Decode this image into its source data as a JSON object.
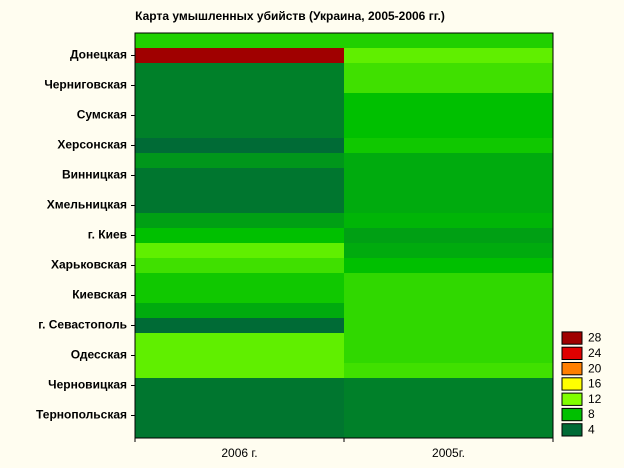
{
  "chart_data": {
    "type": "heatmap",
    "title": "Карта умышленных убийств (Украина, 2005-2006 гг.)",
    "x": [
      "2006 г.",
      "2005г."
    ],
    "categories": [
      null,
      "Донецкая",
      null,
      "Черниговская",
      null,
      "Сумская",
      null,
      "Херсонская",
      null,
      "Винницкая",
      null,
      "Хмельницкая",
      null,
      "г. Киев",
      null,
      "Харьковская",
      null,
      "Киевская",
      null,
      "г. Севастополь",
      null,
      "Одесская",
      null,
      "Черновицкая",
      null,
      "Тернопольская",
      null
    ],
    "values": [
      [
        9,
        28,
        5,
        5,
        5,
        5,
        5,
        4,
        6,
        4.5,
        4.5,
        4.5,
        6.5,
        8,
        11,
        10,
        8.5,
        8.5,
        7,
        4,
        11,
        11,
        11,
        4.5,
        4.5,
        4.5,
        4.5
      ],
      [
        9,
        11,
        10,
        10,
        8,
        8,
        8,
        8.5,
        7,
        7,
        7,
        7,
        7.5,
        6.5,
        7,
        8,
        9.5,
        9.5,
        9.5,
        9.5,
        9.5,
        9.5,
        10,
        5,
        5,
        5,
        5
      ]
    ],
    "levels": [
      4,
      8,
      12,
      16,
      20,
      24,
      28
    ],
    "colors": [
      "#006b36",
      "#00c000",
      "#80ff00",
      "#ffff00",
      "#ff7f00",
      "#e00000",
      "#a00000"
    ]
  }
}
